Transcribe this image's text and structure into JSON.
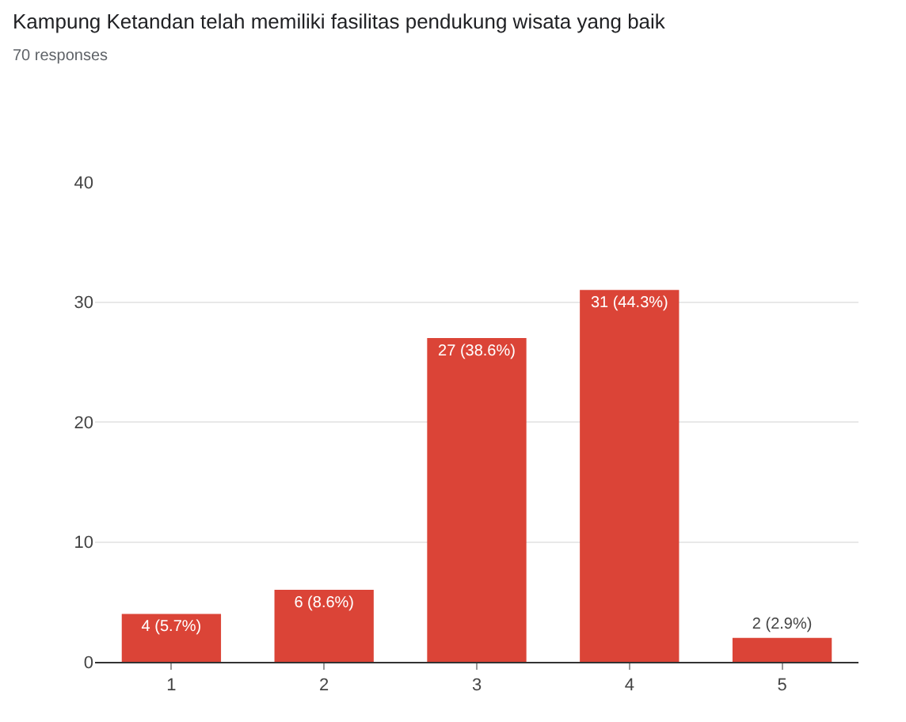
{
  "chart_data": {
    "type": "bar",
    "title": "Kampung Ketandan telah memiliki fasilitas pendukung wisata yang baik",
    "subtitle": "70 responses",
    "categories": [
      "1",
      "2",
      "3",
      "4",
      "5"
    ],
    "values": [
      4,
      6,
      27,
      31,
      2
    ],
    "color": "#db4437",
    "value_labels": [
      "4 (5.7%)",
      "6 (8.6%)",
      "27 (38.6%)",
      "31 (44.3%)",
      "2 (2.9%)"
    ],
    "ylim": [
      0,
      40
    ],
    "yticks": [
      0,
      10,
      20,
      30,
      40
    ],
    "grid": "y"
  }
}
